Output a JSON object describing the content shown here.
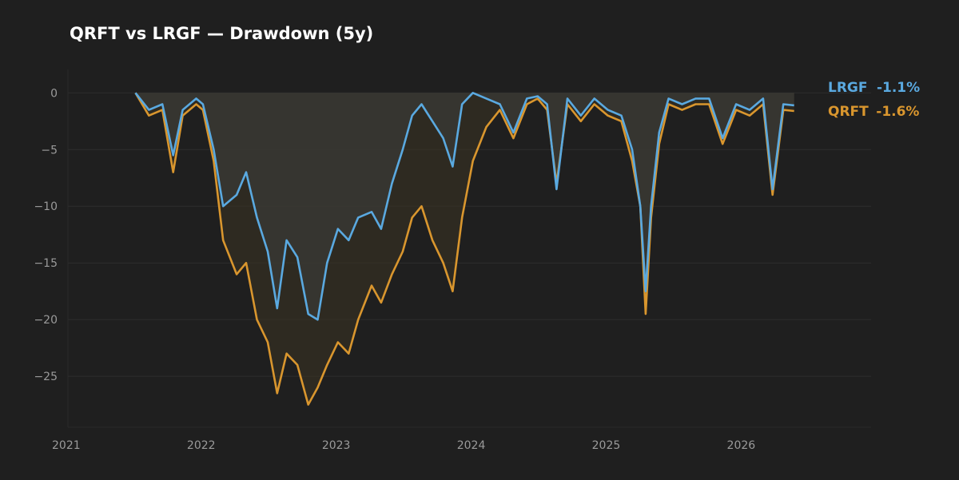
{
  "chart_data": {
    "type": "area",
    "title": "QRFT vs LRGF — Drawdown (5y)",
    "xlabel": "",
    "ylabel": "",
    "ylim": [
      -29.5,
      1.5
    ],
    "xlim": [
      2021.0,
      2026.95
    ],
    "yticks": [
      0,
      -5,
      -10,
      -15,
      -20,
      -25
    ],
    "ytick_labels": [
      "0",
      "−5",
      "−10",
      "−15",
      "−20",
      "−25"
    ],
    "xticks": [
      2021,
      2022,
      2023,
      2024,
      2025,
      2026
    ],
    "xtick_labels": [
      "2021",
      "2022",
      "2023",
      "2024",
      "2025",
      "2026"
    ],
    "grid": "horizontal",
    "legend_position": "right",
    "series": [
      {
        "name": "LRGF",
        "last_label": "-1.1%",
        "color": "#5aa9e0",
        "x": [
          2021.5,
          2021.6,
          2021.7,
          2021.78,
          2021.85,
          2021.95,
          2022.0,
          2022.08,
          2022.15,
          2022.25,
          2022.32,
          2022.4,
          2022.48,
          2022.55,
          2022.62,
          2022.7,
          2022.78,
          2022.85,
          2022.92,
          2023.0,
          2023.08,
          2023.15,
          2023.25,
          2023.32,
          2023.4,
          2023.48,
          2023.55,
          2023.62,
          2023.7,
          2023.78,
          2023.85,
          2023.92,
          2024.0,
          2024.1,
          2024.2,
          2024.3,
          2024.4,
          2024.48,
          2024.55,
          2024.62,
          2024.7,
          2024.8,
          2024.9,
          2025.0,
          2025.1,
          2025.18,
          2025.24,
          2025.28,
          2025.32,
          2025.38,
          2025.45,
          2025.55,
          2025.65,
          2025.75,
          2025.85,
          2025.95,
          2026.05,
          2026.15,
          2026.22,
          2026.3,
          2026.38
        ],
        "y": [
          0,
          -1.5,
          -1.0,
          -5.5,
          -1.5,
          -0.5,
          -1.0,
          -5.0,
          -10.0,
          -9.0,
          -7.0,
          -11.0,
          -14.0,
          -19.0,
          -13.0,
          -14.5,
          -19.5,
          -20.0,
          -15.0,
          -12.0,
          -13.0,
          -11.0,
          -10.5,
          -12.0,
          -8.0,
          -5.0,
          -2.0,
          -1.0,
          -2.5,
          -4.0,
          -6.5,
          -1.0,
          0,
          -0.5,
          -1.0,
          -3.5,
          -0.5,
          -0.3,
          -1.0,
          -8.5,
          -0.5,
          -2.0,
          -0.5,
          -1.5,
          -2.0,
          -5.0,
          -10.0,
          -17.5,
          -10.0,
          -3.5,
          -0.5,
          -1.0,
          -0.5,
          -0.5,
          -4.0,
          -1.0,
          -1.5,
          -0.5,
          -8.5,
          -1.0,
          -1.1
        ]
      },
      {
        "name": "QRFT",
        "last_label": "-1.6%",
        "color": "#d9962e",
        "x": [
          2021.5,
          2021.6,
          2021.7,
          2021.78,
          2021.85,
          2021.95,
          2022.0,
          2022.08,
          2022.15,
          2022.25,
          2022.32,
          2022.4,
          2022.48,
          2022.55,
          2022.62,
          2022.7,
          2022.78,
          2022.85,
          2022.92,
          2023.0,
          2023.08,
          2023.15,
          2023.25,
          2023.32,
          2023.4,
          2023.48,
          2023.55,
          2023.62,
          2023.7,
          2023.78,
          2023.85,
          2023.92,
          2024.0,
          2024.1,
          2024.2,
          2024.3,
          2024.4,
          2024.48,
          2024.55,
          2024.62,
          2024.7,
          2024.8,
          2024.9,
          2025.0,
          2025.1,
          2025.18,
          2025.24,
          2025.28,
          2025.32,
          2025.38,
          2025.45,
          2025.55,
          2025.65,
          2025.75,
          2025.85,
          2025.95,
          2026.05,
          2026.15,
          2026.22,
          2026.3,
          2026.38
        ],
        "y": [
          0,
          -2.0,
          -1.5,
          -7.0,
          -2.0,
          -1.0,
          -1.5,
          -6.0,
          -13.0,
          -16.0,
          -15.0,
          -20.0,
          -22.0,
          -26.5,
          -23.0,
          -24.0,
          -27.5,
          -26.0,
          -24.0,
          -22.0,
          -23.0,
          -20.0,
          -17.0,
          -18.5,
          -16.0,
          -14.0,
          -11.0,
          -10.0,
          -13.0,
          -15.0,
          -17.5,
          -11.0,
          -6.0,
          -3.0,
          -1.5,
          -4.0,
          -1.0,
          -0.5,
          -1.5,
          -8.0,
          -1.0,
          -2.5,
          -1.0,
          -2.0,
          -2.5,
          -6.0,
          -10.0,
          -19.5,
          -11.0,
          -4.5,
          -1.0,
          -1.5,
          -1.0,
          -1.0,
          -4.5,
          -1.5,
          -2.0,
          -1.0,
          -9.0,
          -1.5,
          -1.6
        ]
      }
    ]
  },
  "legend": {
    "lrgf_name": "LRGF",
    "lrgf_value": "-1.1%",
    "qrft_name": "QRFT",
    "qrft_value": "-1.6%"
  },
  "colors": {
    "background": "#1f1f1f",
    "grid": "#2e2e2e",
    "area": "#3a3a35",
    "lrgf": "#5aa9e0",
    "qrft": "#d9962e"
  }
}
